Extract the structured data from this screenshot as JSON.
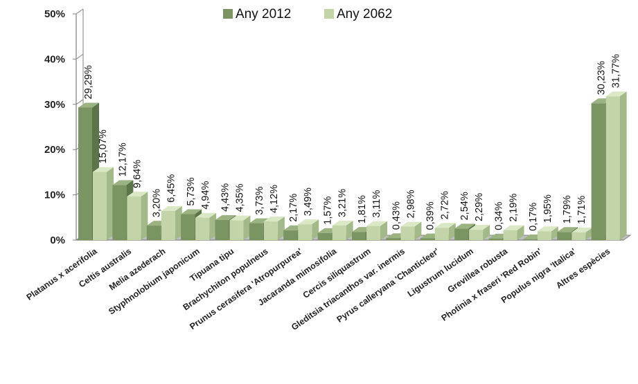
{
  "chart_data": {
    "type": "bar",
    "categories": [
      "Platanus x acerifolia",
      "Celtis australis",
      "Melia azederach",
      "Styphnolobium japonicum",
      "Tipuana tipu",
      "Brachychiton populneus",
      "Prunus cerasifera 'Atropurpurea'",
      "Jacaranda mimosifolia",
      "Cercis siliquastrum",
      "Gleditsia triacanthos var. inermis",
      "Pyrus calleryana 'Chanticleer'",
      "Ligustrum lucidum",
      "Grevillea robusta",
      "Photinia x fraseri 'Red Robin'",
      "Populus nigra 'Italica'",
      "Altres espècies"
    ],
    "series": [
      {
        "name": "Any 2012",
        "values": [
          29.29,
          12.17,
          3.2,
          5.73,
          4.43,
          3.73,
          2.17,
          1.57,
          1.81,
          0.43,
          0.39,
          2.54,
          0.34,
          0.17,
          1.79,
          30.23
        ],
        "labels": [
          "29,29%",
          "12,17%",
          "3,20%",
          "5,73%",
          "4,43%",
          "3,73%",
          "2,17%",
          "1,57%",
          "1,81%",
          "0,43%",
          "0,39%",
          "2,54%",
          "0,34%",
          "0,17%",
          "1,79%",
          "30,23%"
        ]
      },
      {
        "name": "Any 2062",
        "values": [
          15.07,
          9.64,
          6.45,
          4.94,
          4.35,
          4.12,
          3.49,
          3.21,
          3.11,
          2.98,
          2.72,
          2.29,
          2.19,
          1.95,
          1.71,
          31.77
        ],
        "labels": [
          "15,07%",
          "9,64%",
          "6,45%",
          "4,94%",
          "4,35%",
          "4,12%",
          "3,49%",
          "3,21%",
          "3,11%",
          "2,98%",
          "2,72%",
          "2,29%",
          "2,19%",
          "1,95%",
          "1,71%",
          "31,77%"
        ]
      }
    ],
    "yticks": [
      "0%",
      "10%",
      "20%",
      "30%",
      "40%",
      "50%"
    ],
    "ylim": [
      0,
      50
    ],
    "title": "",
    "xlabel": "",
    "ylabel": "",
    "legend_position": "top-center",
    "grid": false,
    "style": "3d-clustered-column",
    "colors": {
      "series_2012_front": "#7a9462",
      "series_2012_top": "#9bb381",
      "series_2012_side": "#5c7548",
      "series_2062_front": "#c3d5a8",
      "series_2062_top": "#dbe8c6",
      "series_2062_side": "#a3b98a",
      "axis": "#808080",
      "floor": "#bfbfbf"
    }
  }
}
